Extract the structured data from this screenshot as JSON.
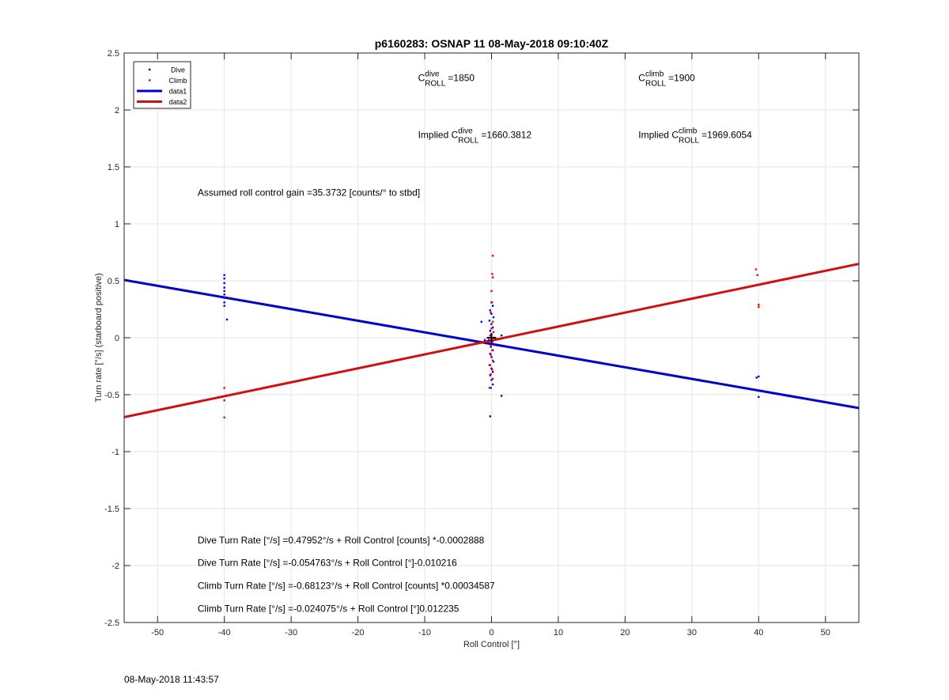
{
  "chart_data": {
    "type": "scatter",
    "title": "p6160283: OSNAP 11 08-May-2018 09:10:40Z",
    "xlabel": "Roll Control [°]",
    "ylabel": "Turn rate [°/s] (starboard positive)",
    "xlim": [
      -55,
      55
    ],
    "ylim": [
      -2.5,
      2.5
    ],
    "xticks": [
      -50,
      -40,
      -30,
      -20,
      -10,
      0,
      10,
      20,
      30,
      40,
      50
    ],
    "yticks": [
      -2.5,
      -2,
      -1.5,
      -1,
      -0.5,
      0,
      0.5,
      1,
      1.5,
      2,
      2.5
    ],
    "grid": true,
    "legend_position": "top-left",
    "legend": [
      {
        "label": "Dive",
        "kind": "point",
        "color": "#0000ff"
      },
      {
        "label": "Climb",
        "kind": "point",
        "color": "#ff0000"
      },
      {
        "label": "data1",
        "kind": "line",
        "color": "#0000c8"
      },
      {
        "label": "data2",
        "kind": "line",
        "color": "#d01010"
      }
    ],
    "lines": [
      {
        "name": "data1",
        "color": "#0000c8",
        "x": [
          -55,
          55
        ],
        "y": [
          0.507,
          -0.617
        ]
      },
      {
        "name": "data2",
        "color": "#d01010",
        "x": [
          -55,
          55
        ],
        "y": [
          -0.697,
          0.649
        ]
      }
    ],
    "series": [
      {
        "name": "Dive",
        "color": "#0000ff",
        "points": [
          [
            -40,
            0.55
          ],
          [
            -40,
            0.52
          ],
          [
            -40,
            0.48
          ],
          [
            -40,
            0.44
          ],
          [
            -40,
            0.41
          ],
          [
            -40,
            0.38
          ],
          [
            -40,
            0.35
          ],
          [
            -40,
            0.31
          ],
          [
            -40,
            0.28
          ],
          [
            -39.6,
            0.16
          ],
          [
            0,
            0.31
          ],
          [
            0.2,
            0.28
          ],
          [
            -0.2,
            0.24
          ],
          [
            0,
            0.21
          ],
          [
            0.3,
            0.18
          ],
          [
            -0.3,
            0.15
          ],
          [
            0,
            0.12
          ],
          [
            0.2,
            0.09
          ],
          [
            -0.2,
            0.06
          ],
          [
            0,
            0.03
          ],
          [
            0.4,
            0.0
          ],
          [
            -0.4,
            -0.02
          ],
          [
            0.1,
            -0.05
          ],
          [
            -0.1,
            -0.08
          ],
          [
            0.2,
            -0.11
          ],
          [
            -0.2,
            -0.14
          ],
          [
            0,
            -0.17
          ],
          [
            0.3,
            -0.21
          ],
          [
            -0.3,
            -0.24
          ],
          [
            0,
            -0.27
          ],
          [
            0.2,
            -0.3
          ],
          [
            -0.2,
            -0.33
          ],
          [
            0,
            -0.37
          ],
          [
            0.2,
            -0.41
          ],
          [
            -0.1,
            -0.44
          ],
          [
            -1.5,
            0.14
          ],
          [
            -1,
            -0.02
          ],
          [
            1.5,
            0.02
          ],
          [
            1.5,
            -0.51
          ],
          [
            -0.2,
            -0.69
          ],
          [
            39.7,
            -0.35
          ],
          [
            40,
            -0.34
          ],
          [
            39.6,
            -0.46
          ],
          [
            40,
            -0.52
          ]
        ]
      },
      {
        "name": "Climb",
        "color": "#ff0000",
        "points": [
          [
            0.2,
            0.72
          ],
          [
            0.1,
            0.56
          ],
          [
            0.2,
            0.53
          ],
          [
            0,
            0.41
          ],
          [
            0.1,
            0.31
          ],
          [
            -0.1,
            0.22
          ],
          [
            0.2,
            0.14
          ],
          [
            0,
            0.08
          ],
          [
            0.3,
            0.05
          ],
          [
            -0.2,
            0.02
          ],
          [
            0.2,
            -0.03
          ],
          [
            -0.1,
            -0.07
          ],
          [
            0.1,
            -0.11
          ],
          [
            -0.1,
            -0.15
          ],
          [
            0.2,
            -0.2
          ],
          [
            -0.2,
            -0.24
          ],
          [
            0.1,
            -0.28
          ],
          [
            -0.1,
            -0.32
          ],
          [
            0.2,
            -0.36
          ],
          [
            -0.3,
            -0.44
          ],
          [
            -40,
            -0.44
          ],
          [
            -40,
            -0.55
          ],
          [
            -40,
            -0.7
          ],
          [
            39.6,
            0.6
          ],
          [
            39.8,
            0.55
          ],
          [
            40,
            0.29
          ],
          [
            40,
            0.27
          ]
        ]
      }
    ],
    "origin_marker": {
      "x": 0,
      "y": 0,
      "color": "#000000"
    },
    "annotations": [
      {
        "id": "c-dive",
        "text": "C_ROLL^dive =1850",
        "pre": "",
        "base": "C",
        "sup": "dive",
        "sub": "ROLL",
        "post": "=1850",
        "x": -11,
        "y": 2.255
      },
      {
        "id": "c-climb",
        "text": "C_ROLL^climb =1900",
        "pre": "",
        "base": "C",
        "sup": "climb",
        "sub": "ROLL",
        "post": "=1900",
        "x": 22,
        "y": 2.255
      },
      {
        "id": "implied-dive",
        "text": "Implied C_ROLL^dive =1660.3812",
        "pre": "Implied ",
        "base": "C",
        "sup": "dive",
        "sub": "ROLL",
        "post": "=1660.3812",
        "x": -11,
        "y": 1.755
      },
      {
        "id": "implied-climb",
        "text": "Implied C_ROLL^climb =1969.6054",
        "pre": "Implied ",
        "base": "C",
        "sup": "climb",
        "sub": "ROLL",
        "post": "=1969.6054",
        "x": 22,
        "y": 1.755
      },
      {
        "id": "gain",
        "text": "Assumed roll control gain =35.3732 [counts/° to stbd]",
        "x": -44,
        "y": 1.245
      },
      {
        "id": "dive-counts",
        "text": "Dive Turn Rate [°/s] =0.47952°/s + Roll Control [counts] *-0.0002888",
        "x": -44,
        "y": -1.805
      },
      {
        "id": "dive-deg",
        "text": "Dive Turn Rate [°/s] =-0.054763°/s + Roll Control [°]-0.010216",
        "x": -44,
        "y": -2.005
      },
      {
        "id": "climb-counts",
        "text": "Climb Turn Rate [°/s] =-0.68123°/s + Roll Control [counts] *0.00034587",
        "x": -44,
        "y": -2.205
      },
      {
        "id": "climb-deg",
        "text": "Climb Turn Rate [°/s] =-0.024075°/s + Roll Control [°]0.012235",
        "x": -44,
        "y": -2.405
      }
    ]
  },
  "footer": {
    "timestamp": "08-May-2018 11:43:57"
  }
}
